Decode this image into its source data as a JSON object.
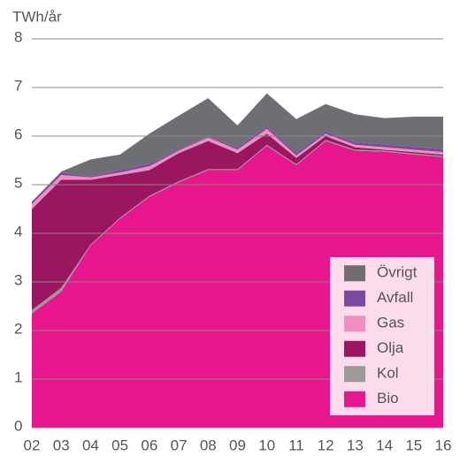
{
  "chart_data": {
    "type": "stacked_area",
    "y_axis_label": "TWh/år",
    "categories": [
      "02",
      "03",
      "04",
      "05",
      "06",
      "07",
      "08",
      "09",
      "10",
      "11",
      "12",
      "13",
      "14",
      "15",
      "16"
    ],
    "series": [
      {
        "name": "Bio",
        "color": "#e8168c",
        "values": [
          2.35,
          2.8,
          3.75,
          4.3,
          4.75,
          5.05,
          5.3,
          5.3,
          5.8,
          5.4,
          5.9,
          5.7,
          5.68,
          5.62,
          5.57
        ]
      },
      {
        "name": "Kol",
        "color": "#9a9a9a",
        "values": [
          0.07,
          0.08,
          0.02,
          0.02,
          0.02,
          0.02,
          0.02,
          0.02,
          0.02,
          0.02,
          0.02,
          0.02,
          0.02,
          0.02,
          0.02
        ]
      },
      {
        "name": "Olja",
        "color": "#9b1660",
        "values": [
          2.08,
          2.22,
          1.33,
          0.88,
          0.53,
          0.58,
          0.58,
          0.33,
          0.23,
          0.13,
          0.08,
          0.05,
          0.02,
          0.03,
          0.03
        ]
      },
      {
        "name": "Gas",
        "color": "#ef8fc0",
        "values": [
          0.1,
          0.1,
          0.05,
          0.05,
          0.08,
          0.05,
          0.07,
          0.07,
          0.1,
          0.05,
          0.05,
          0.05,
          0.05,
          0.05,
          0.05
        ]
      },
      {
        "name": "Avfall",
        "color": "#7b4aa0",
        "values": [
          0.05,
          0.05,
          0.02,
          0.05,
          0.05,
          0.02,
          0.02,
          0.04,
          0.05,
          0.05,
          0.05,
          0.05,
          0.06,
          0.06,
          0.06
        ]
      },
      {
        "name": "Övrigt",
        "color": "#6f6f73",
        "values": [
          0,
          0.02,
          0.35,
          0.32,
          0.62,
          0.7,
          0.79,
          0.46,
          0.68,
          0.7,
          0.56,
          0.58,
          0.54,
          0.62,
          0.67
        ]
      }
    ],
    "ylim": [
      0,
      8
    ],
    "yticks": [
      0,
      1,
      2,
      3,
      4,
      5,
      6,
      7,
      8
    ],
    "grid": true,
    "legend": "lower right"
  }
}
